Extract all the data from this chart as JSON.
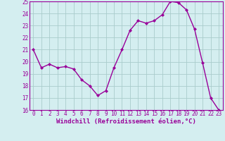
{
  "x": [
    0,
    1,
    2,
    3,
    4,
    5,
    6,
    7,
    8,
    9,
    10,
    11,
    12,
    13,
    14,
    15,
    16,
    17,
    18,
    19,
    20,
    21,
    22,
    23
  ],
  "y": [
    21.0,
    19.5,
    19.8,
    19.5,
    19.6,
    19.4,
    18.5,
    18.0,
    17.2,
    17.6,
    19.5,
    21.0,
    22.6,
    23.4,
    23.2,
    23.4,
    23.9,
    25.0,
    24.9,
    24.3,
    22.7,
    19.9,
    17.0,
    16.0
  ],
  "line_color": "#990099",
  "marker": "D",
  "marker_size": 2.0,
  "linewidth": 1.0,
  "xlabel": "Windchill (Refroidissement éolien,°C)",
  "xlabel_fontsize": 6.5,
  "xlabel_color": "#990099",
  "ylim": [
    16,
    25
  ],
  "xlim": [
    -0.5,
    23.5
  ],
  "yticks": [
    16,
    17,
    18,
    19,
    20,
    21,
    22,
    23,
    24,
    25
  ],
  "xticks": [
    0,
    1,
    2,
    3,
    4,
    5,
    6,
    7,
    8,
    9,
    10,
    11,
    12,
    13,
    14,
    15,
    16,
    17,
    18,
    19,
    20,
    21,
    22,
    23
  ],
  "tick_fontsize": 5.5,
  "tick_color": "#990099",
  "grid_color": "#aacccc",
  "bg_color": "#d4eef0",
  "spine_color": "#990099"
}
